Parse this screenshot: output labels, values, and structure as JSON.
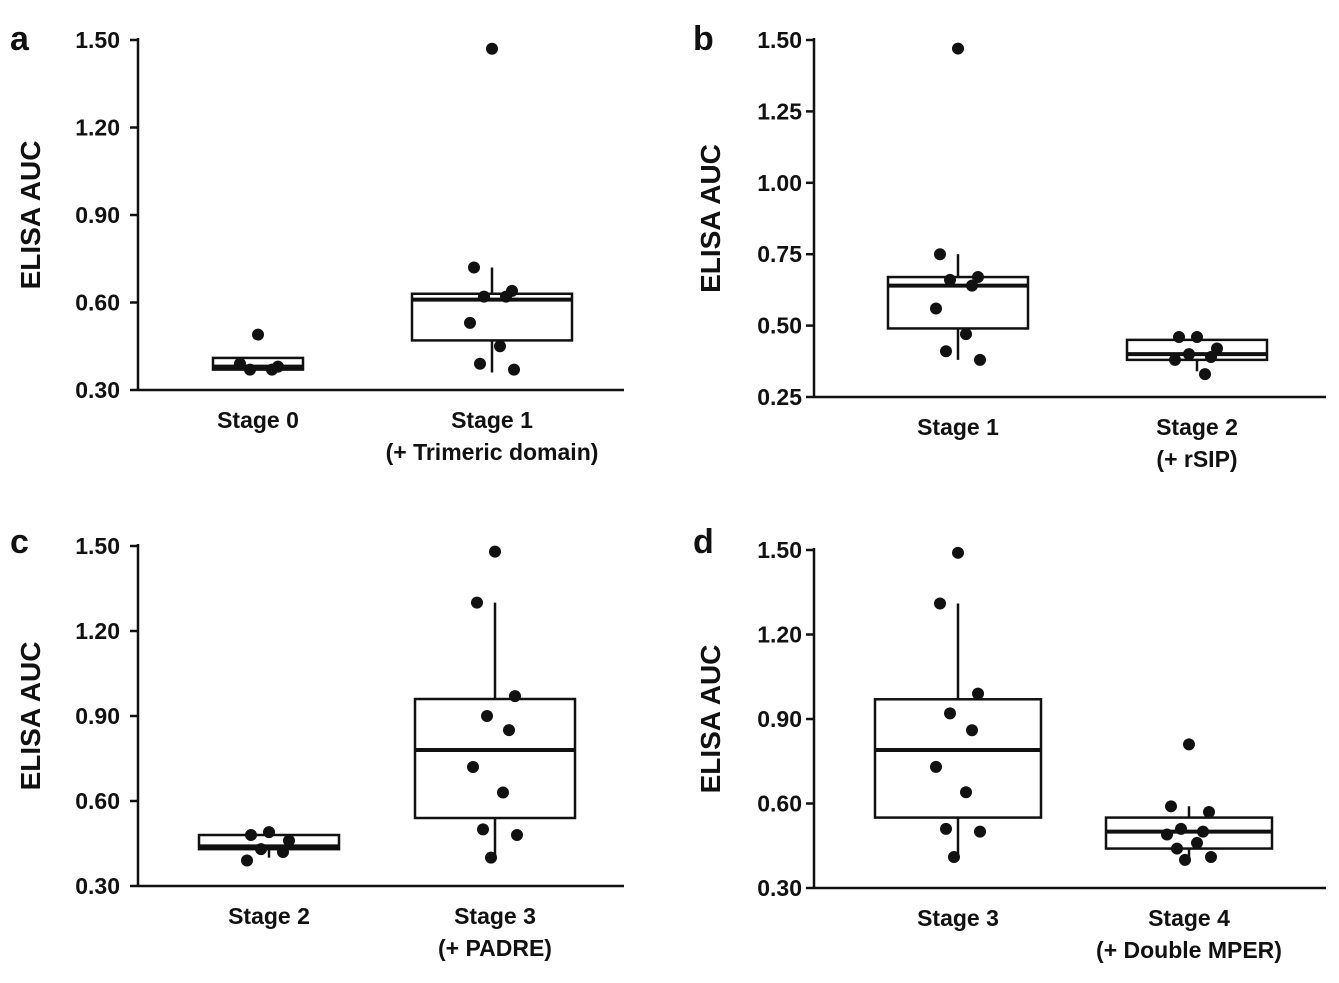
{
  "chart_data": [
    {
      "panel_label": "a",
      "type": "box",
      "ylabel": "ELISA AUC",
      "ylim": [
        0.3,
        1.5
      ],
      "yticks": [
        "0.30",
        "0.60",
        "0.90",
        "1.20",
        "1.50"
      ],
      "groups": [
        {
          "label": [
            "Stage 0"
          ],
          "q1": 0.37,
          "median": 0.38,
          "q3": 0.41,
          "whisker_low": 0.37,
          "whisker_high": 0.41,
          "points": [
            0.49,
            0.39,
            0.38,
            0.37,
            0.37
          ]
        },
        {
          "label": [
            "Stage 1",
            "(+ Trimeric domain)"
          ],
          "q1": 0.47,
          "median": 0.61,
          "q3": 0.63,
          "whisker_low": 0.36,
          "whisker_high": 0.72,
          "points": [
            1.47,
            0.72,
            0.64,
            0.62,
            0.62,
            0.53,
            0.45,
            0.39,
            0.37
          ]
        }
      ]
    },
    {
      "panel_label": "b",
      "type": "box",
      "ylabel": "ELISA AUC",
      "ylim": [
        0.25,
        1.5
      ],
      "yticks": [
        "0.25",
        "0.50",
        "0.75",
        "1.00",
        "1.25",
        "1.50"
      ],
      "groups": [
        {
          "label": [
            "Stage 1"
          ],
          "q1": 0.49,
          "median": 0.64,
          "q3": 0.67,
          "whisker_low": 0.38,
          "whisker_high": 0.75,
          "points": [
            1.47,
            0.75,
            0.67,
            0.66,
            0.64,
            0.56,
            0.47,
            0.41,
            0.38
          ]
        },
        {
          "label": [
            "Stage 2",
            "(+ rSIP)"
          ],
          "q1": 0.38,
          "median": 0.4,
          "q3": 0.45,
          "whisker_low": 0.34,
          "whisker_high": 0.46,
          "points": [
            0.46,
            0.46,
            0.42,
            0.4,
            0.39,
            0.38,
            0.33
          ]
        }
      ]
    },
    {
      "panel_label": "c",
      "type": "box",
      "ylabel": "ELISA AUC",
      "ylim": [
        0.3,
        1.5
      ],
      "yticks": [
        "0.30",
        "0.60",
        "0.90",
        "1.20",
        "1.50"
      ],
      "groups": [
        {
          "label": [
            "Stage 2"
          ],
          "q1": 0.43,
          "median": 0.44,
          "q3": 0.48,
          "whisker_low": 0.4,
          "whisker_high": 0.49,
          "points": [
            0.49,
            0.48,
            0.46,
            0.43,
            0.42,
            0.39
          ]
        },
        {
          "label": [
            "Stage 3",
            "(+ PADRE)"
          ],
          "q1": 0.54,
          "median": 0.78,
          "q3": 0.96,
          "whisker_low": 0.4,
          "whisker_high": 1.3,
          "points": [
            1.48,
            1.3,
            0.97,
            0.9,
            0.85,
            0.72,
            0.63,
            0.5,
            0.48,
            0.4
          ]
        }
      ]
    },
    {
      "panel_label": "d",
      "type": "box",
      "ylabel": "ELISA AUC",
      "ylim": [
        0.3,
        1.5
      ],
      "yticks": [
        "0.30",
        "0.60",
        "0.90",
        "1.20",
        "1.50"
      ],
      "groups": [
        {
          "label": [
            "Stage 3"
          ],
          "q1": 0.55,
          "median": 0.79,
          "q3": 0.97,
          "whisker_low": 0.41,
          "whisker_high": 1.31,
          "points": [
            1.49,
            1.31,
            0.99,
            0.92,
            0.86,
            0.73,
            0.64,
            0.51,
            0.5,
            0.41
          ]
        },
        {
          "label": [
            "Stage 4",
            "(+ Double MPER)"
          ],
          "q1": 0.44,
          "median": 0.5,
          "q3": 0.55,
          "whisker_low": 0.4,
          "whisker_high": 0.59,
          "points": [
            0.81,
            0.59,
            0.57,
            0.51,
            0.5,
            0.49,
            0.46,
            0.44,
            0.41,
            0.4
          ]
        }
      ]
    }
  ]
}
